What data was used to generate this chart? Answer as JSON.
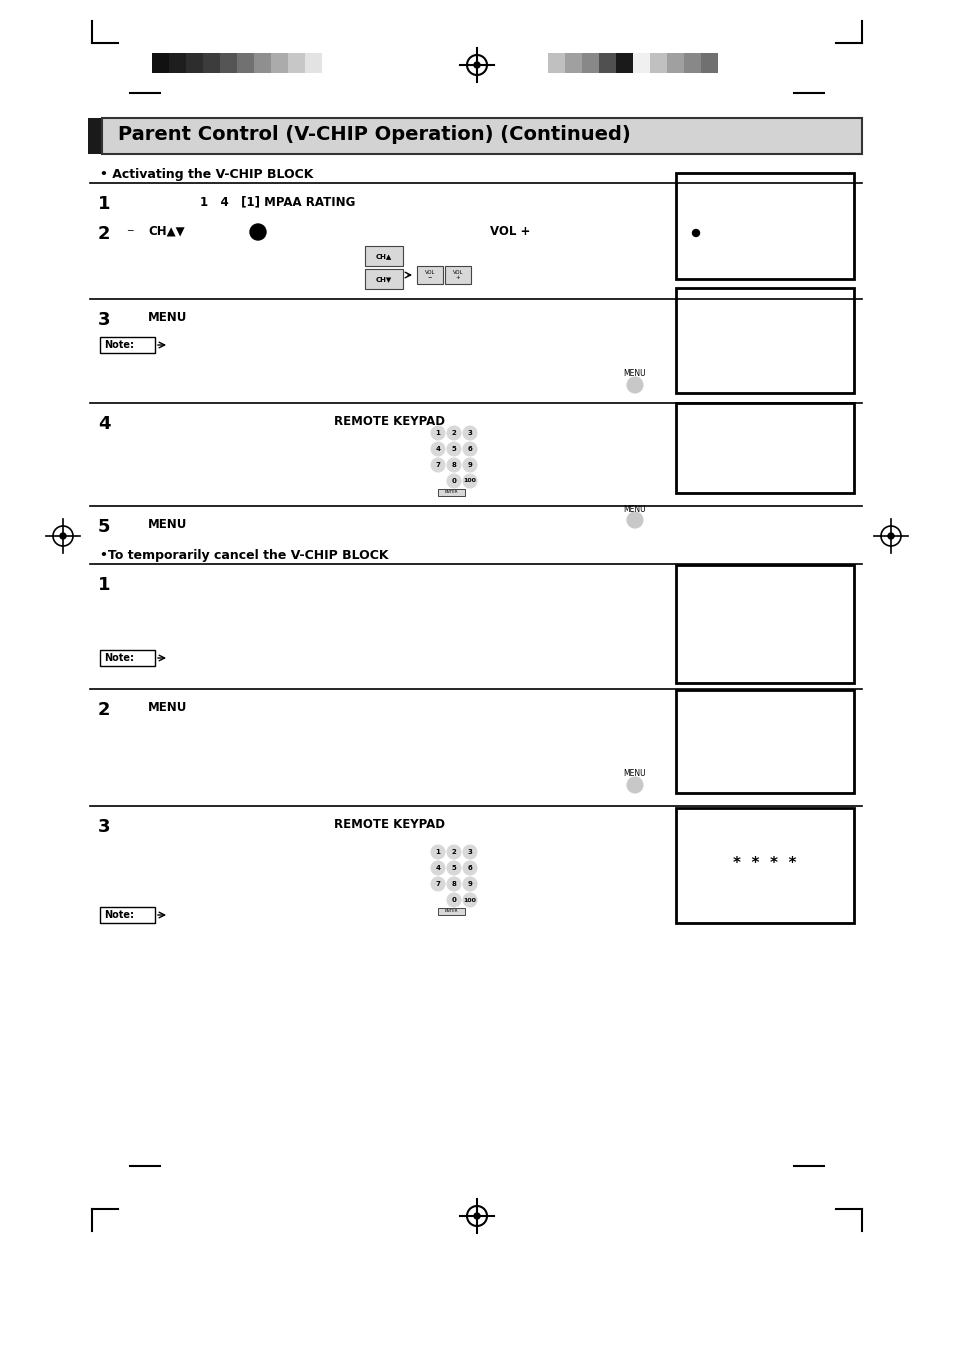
{
  "title": "Parent Control (V-CHIP Operation) (Continued)",
  "page_bg": "#ffffff",
  "section1_bullet": "• Activating the V-CHIP BLOCK",
  "section2_bullet": "•To temporarily cancel the V-CHIP BLOCK",
  "stars_text": "*  *  *  *",
  "bar_colors_left": [
    "#111111",
    "#1e1e1e",
    "#2d2d2d",
    "#3c3c3c",
    "#555555",
    "#717171",
    "#8f8f8f",
    "#ababab",
    "#c7c7c7",
    "#e3e3e3"
  ],
  "bar_colors_right": [
    "#c0c0c0",
    "#a0a0a0",
    "#888888",
    "#505050",
    "#1a1a1a",
    "#f0f0f0",
    "#c0c0c0",
    "#a0a0a0",
    "#888888",
    "#707070"
  ],
  "keypad_bg": "#d8d8d8",
  "keypad_nums": [
    [
      "1",
      "2",
      "3"
    ],
    [
      "4",
      "5",
      "6"
    ],
    [
      "7",
      "8",
      "9"
    ],
    [
      "",
      "0",
      "100"
    ]
  ]
}
